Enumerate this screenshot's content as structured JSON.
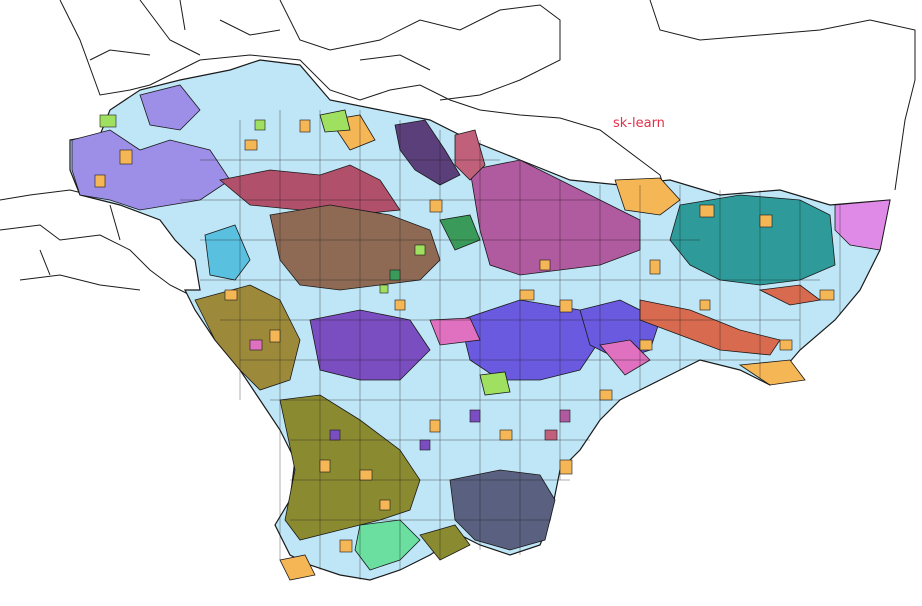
{
  "map": {
    "label": "sk-learn",
    "label_color": "#e0304a",
    "background": "#ffffff",
    "base_fill": "#bfe6f7",
    "outline_color": "#1a1a1a",
    "cluster_colors": {
      "light_blue": "#bfe6f7",
      "orange": "#f5b655",
      "lavender": "#9d8ee8",
      "olive": "#8a8a30",
      "tan_olive": "#9c8a3a",
      "brown": "#8e6a55",
      "maroon": "#b0506a",
      "magenta": "#b05aa0",
      "teal": "#2e9a9a",
      "purple": "#7a4ec0",
      "blue_violet": "#6a5adf",
      "pink": "#e070c0",
      "coral": "#d86a50",
      "slate": "#5a6080",
      "green": "#3a9a5a",
      "mint": "#6adfa0",
      "violet": "#e08ae8",
      "dark_purple": "#5a3f7a",
      "sky_blue": "#5ac0e0",
      "light_green": "#a0e060",
      "dusty_rose": "#c0607a"
    }
  }
}
